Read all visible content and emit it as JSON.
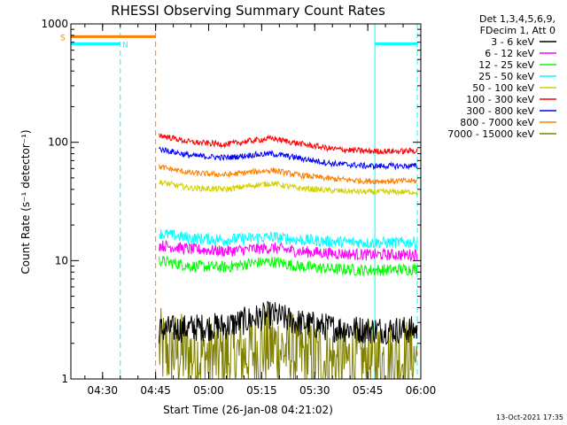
{
  "chart_data": {
    "type": "line",
    "title": "RHESSI Observing Summary Count Rates",
    "xlabel": "Start Time (26-Jan-08 04:21:02)",
    "ylabel": "Count Rate (s⁻¹ detector⁻¹)",
    "yscale": "log",
    "ylim": [
      1,
      1000
    ],
    "xlim": [
      "04:21:02",
      "06:00:00"
    ],
    "x_ticks": [
      "04:30",
      "04:45",
      "05:00",
      "05:15",
      "05:30",
      "05:45",
      "06:00"
    ],
    "y_ticks": [
      "1",
      "10",
      "100",
      "1000"
    ],
    "legend_header": [
      "Det 1,3,4,5,6,9,",
      "FDecim 1, Att 0"
    ],
    "legend_position": "right",
    "data_start": "04:46",
    "data_end": "05:59",
    "series": [
      {
        "name": "3 - 6 keV",
        "color": "#000000",
        "x": [
          "04:46",
          "04:55",
          "05:05",
          "05:12",
          "05:18",
          "05:25",
          "05:35",
          "05:45",
          "05:55",
          "05:59"
        ],
        "y": [
          2.6,
          2.7,
          2.8,
          3.2,
          3.5,
          3.0,
          2.7,
          2.6,
          2.6,
          2.6
        ]
      },
      {
        "name": "6 - 12 keV",
        "color": "#ff00ff",
        "x": [
          "04:46",
          "04:55",
          "05:05",
          "05:12",
          "05:18",
          "05:25",
          "05:35",
          "05:45",
          "05:55",
          "05:59"
        ],
        "y": [
          13.5,
          12.5,
          12.0,
          12.5,
          12.8,
          12.0,
          11.5,
          11.2,
          11.2,
          11.3
        ]
      },
      {
        "name": "12 - 25 keV",
        "color": "#00ff00",
        "x": [
          "04:46",
          "04:55",
          "05:05",
          "05:12",
          "05:18",
          "05:25",
          "05:35",
          "05:45",
          "05:55",
          "05:59"
        ],
        "y": [
          10.0,
          9.0,
          8.8,
          9.5,
          9.8,
          9.0,
          8.5,
          8.3,
          8.4,
          8.5
        ]
      },
      {
        "name": "25 - 50 keV",
        "color": "#00ffff",
        "x": [
          "04:46",
          "04:55",
          "05:05",
          "05:12",
          "05:18",
          "05:25",
          "05:35",
          "05:45",
          "05:55",
          "05:59"
        ],
        "y": [
          17.0,
          15.5,
          15.0,
          15.5,
          15.8,
          15.0,
          14.5,
          14.2,
          14.2,
          14.3
        ]
      },
      {
        "name": "50 - 100 keV",
        "color": "#d0d000",
        "x": [
          "04:46",
          "04:55",
          "05:05",
          "05:12",
          "05:18",
          "05:25",
          "05:35",
          "05:45",
          "05:55",
          "05:59"
        ],
        "y": [
          46,
          41,
          40,
          43,
          45,
          41,
          39,
          38,
          38,
          38
        ]
      },
      {
        "name": "100 - 300 keV",
        "color": "#ff0000",
        "x": [
          "04:46",
          "04:55",
          "05:05",
          "05:12",
          "05:18",
          "05:25",
          "05:35",
          "05:45",
          "05:55",
          "05:59"
        ],
        "y": [
          115,
          100,
          96,
          103,
          108,
          98,
          88,
          84,
          84,
          85
        ]
      },
      {
        "name": "300 - 800 keV",
        "color": "#0000ff",
        "x": [
          "04:46",
          "04:55",
          "05:05",
          "05:12",
          "05:18",
          "05:25",
          "05:35",
          "05:45",
          "05:55",
          "05:59"
        ],
        "y": [
          88,
          77,
          74,
          78,
          80,
          74,
          66,
          63,
          63,
          63
        ]
      },
      {
        "name": "800 - 7000 keV",
        "color": "#ff8000",
        "x": [
          "04:46",
          "04:55",
          "05:05",
          "05:12",
          "05:18",
          "05:25",
          "05:35",
          "05:45",
          "05:55",
          "05:59"
        ],
        "y": [
          62,
          55,
          53,
          56,
          58,
          53,
          49,
          47,
          47,
          47
        ]
      },
      {
        "name": "7000 - 15000 keV",
        "color": "#808000",
        "x": [
          "04:46",
          "04:55",
          "05:05",
          "05:12",
          "05:18",
          "05:25",
          "05:35",
          "05:45",
          "05:55",
          "05:59"
        ],
        "y": [
          1.8,
          1.6,
          1.5,
          1.7,
          1.9,
          1.6,
          1.4,
          1.4,
          1.5,
          1.5
        ]
      }
    ],
    "flags": [
      {
        "label": "S",
        "color": "#ff8000",
        "x_start": "04:21:02",
        "x_end": "04:45",
        "level": 780
      },
      {
        "label": "N",
        "color": "#00ffff",
        "x_start": "04:21:02",
        "x_end": "04:35",
        "level": 680
      },
      {
        "label": "",
        "color": "#00ffff",
        "x_start": "05:47",
        "x_end": "05:59",
        "level": 680
      }
    ],
    "markers": [
      {
        "time": "04:21:02",
        "color": "#00ffff",
        "style": "solid"
      },
      {
        "time": "04:35",
        "color": "#00ffff",
        "style": "dashed"
      },
      {
        "time": "04:45",
        "color": "#ff8000",
        "style": "dashed"
      },
      {
        "time": "05:47",
        "color": "#00ffff",
        "style": "solid"
      },
      {
        "time": "05:59",
        "color": "#00ffff",
        "style": "dashed"
      }
    ]
  },
  "footer": {
    "timestamp": "13-Oct-2021 17:35"
  }
}
